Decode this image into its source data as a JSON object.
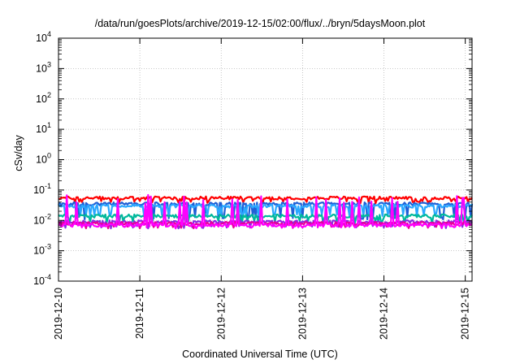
{
  "chart_data": {
    "type": "line",
    "title": "/data/run/goesPlots/archive/2019-12-15/02:00/flux/../bryn/5daysMoon.plot",
    "xlabel": "Coordinated Universal Time (UTC)",
    "ylabel": "cSv/day",
    "yscale": "log",
    "ylim": [
      0.0001,
      10000
    ],
    "y_tick_labels": [
      {
        "base": "10",
        "exp": "-4"
      },
      {
        "base": "10",
        "exp": "-3"
      },
      {
        "base": "10",
        "exp": "-2"
      },
      {
        "base": "10",
        "exp": "-1"
      },
      {
        "base": "10",
        "exp": "0"
      },
      {
        "base": "10",
        "exp": "1"
      },
      {
        "base": "10",
        "exp": "2"
      },
      {
        "base": "10",
        "exp": "3"
      },
      {
        "base": "10",
        "exp": "4"
      }
    ],
    "xlim": [
      "2019-12-10",
      "2019-12-15 02:00"
    ],
    "x_tick_labels": [
      "2019-12-10",
      "2019-12-11",
      "2019-12-12",
      "2019-12-13",
      "2019-12-14",
      "2019-12-15"
    ],
    "grid": true,
    "series": [
      {
        "color": "#ff0000",
        "typical": 0.055,
        "dip_to": 0.04
      },
      {
        "color": "#1f5fd6",
        "typical": 0.035,
        "dip_to": 0.012
      },
      {
        "color": "#2aa8ff",
        "typical": 0.03,
        "dip_to": 0.015
      },
      {
        "color": "#00b89c",
        "typical": 0.014,
        "dip_to": 0.009
      },
      {
        "color": "#8a2be2",
        "typical": 0.009,
        "dip_to": 0.006
      },
      {
        "color": "#e8009a",
        "typical": 0.008,
        "dip_to": 0.006
      },
      {
        "color": "#ff00ff",
        "typical": 0.007,
        "dip_to": 0.006,
        "peak_to": 0.07
      }
    ]
  }
}
